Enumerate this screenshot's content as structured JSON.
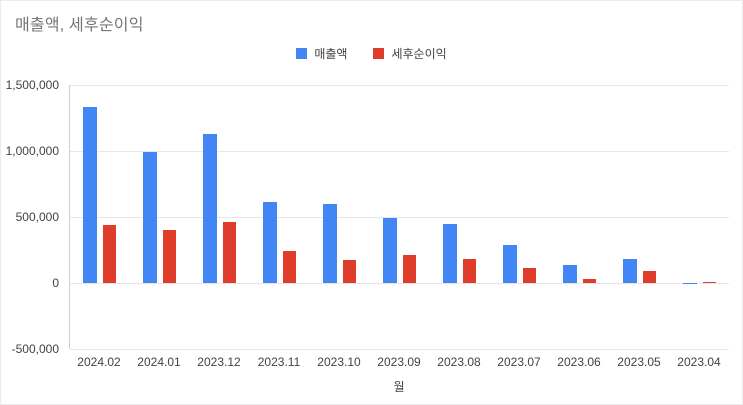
{
  "chart_data": {
    "type": "bar",
    "title": "매출액, 세후순이익",
    "xlabel": "월",
    "ylabel": "",
    "categories": [
      "2024.02",
      "2024.01",
      "2023.12",
      "2023.11",
      "2023.10",
      "2023.09",
      "2023.08",
      "2023.07",
      "2023.06",
      "2023.05",
      "2023.04"
    ],
    "series": [
      {
        "name": "매출액",
        "color": "#4285f4",
        "values": [
          1330000,
          990000,
          1130000,
          615000,
          600000,
          495000,
          450000,
          290000,
          140000,
          180000,
          3000
        ]
      },
      {
        "name": "세후순이익",
        "color": "#e03c2c",
        "values": [
          440000,
          400000,
          465000,
          240000,
          175000,
          210000,
          180000,
          110000,
          30000,
          90000,
          8000
        ]
      }
    ],
    "ylim": [
      -500000,
      1500000
    ],
    "yticks": [
      {
        "value": -500000,
        "label": "-500,000"
      },
      {
        "value": 0,
        "label": "0"
      },
      {
        "value": 500000,
        "label": "500,000"
      },
      {
        "value": 1000000,
        "label": "1,000,000"
      },
      {
        "value": 1500000,
        "label": "1,500,000"
      }
    ],
    "grid": true,
    "legend_position": "top"
  }
}
